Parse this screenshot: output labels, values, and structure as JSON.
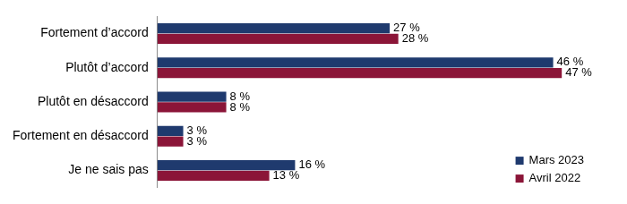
{
  "chart_data": {
    "type": "bar",
    "orientation": "horizontal",
    "categories": [
      "Fortement d’accord",
      "Plutôt d’accord",
      "Plutôt en désaccord",
      "Fortement en désaccord",
      "Je ne sais pas"
    ],
    "series": [
      {
        "name": "Mars 2023",
        "color": "#1f3a6e",
        "values": [
          27,
          46,
          8,
          3,
          16
        ],
        "value_labels": [
          "27 %",
          "46 %",
          "8 %",
          "3 %",
          "16 %"
        ]
      },
      {
        "name": "Avril 2022",
        "color": "#8b1538",
        "values": [
          28,
          47,
          8,
          3,
          13
        ],
        "value_labels": [
          "28 %",
          "47 %",
          "8 %",
          "3 %",
          "13 %"
        ]
      }
    ],
    "data_labels": true,
    "tick_labels": "y",
    "grid": false,
    "legend": "lower right"
  }
}
